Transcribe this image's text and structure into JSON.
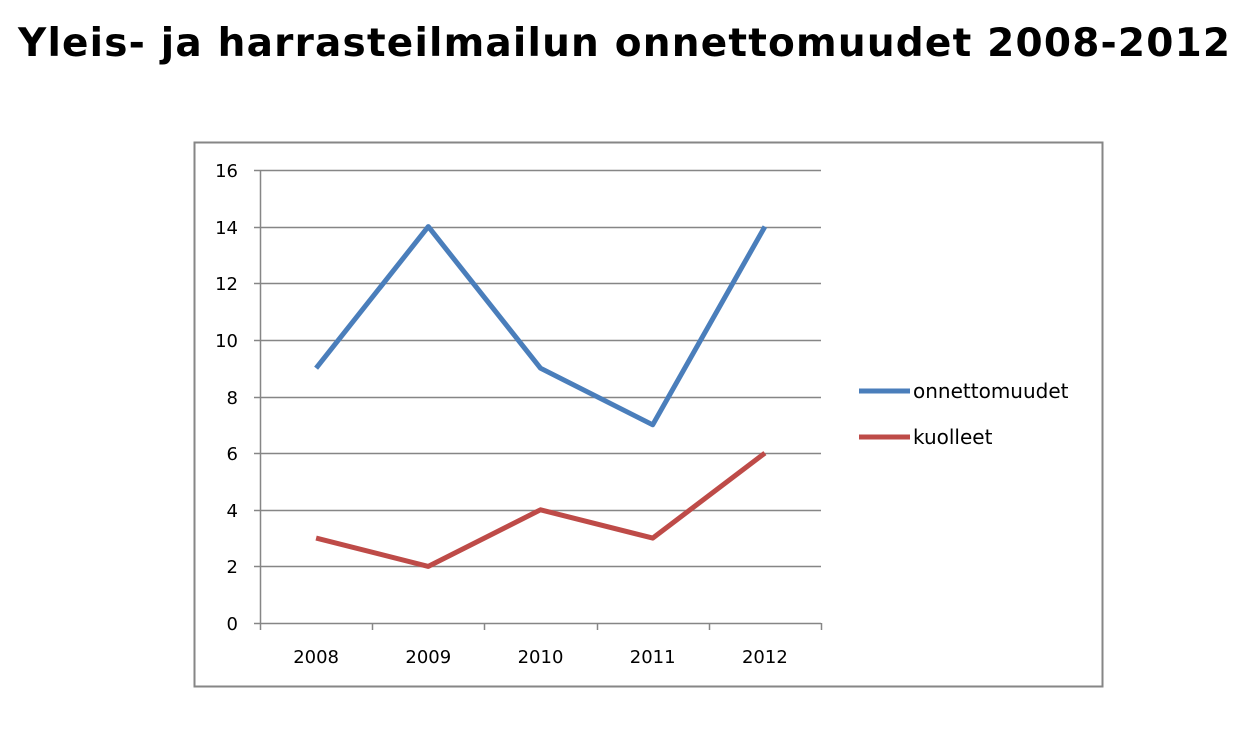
{
  "page": {
    "title": "Yleis- ja harrasteilmailun onnettomuudet 2008-2012"
  },
  "chart_data": {
    "type": "line",
    "title": "Yleis- ja harrasteilmailun onnettomuudet 2008-2012",
    "xlabel": "",
    "ylabel": "",
    "categories": [
      "2008",
      "2009",
      "2010",
      "2011",
      "2012"
    ],
    "ylim": [
      0,
      16
    ],
    "yticks": [
      0,
      2,
      4,
      6,
      8,
      10,
      12,
      14,
      16
    ],
    "grid": true,
    "legend_position": "right",
    "series": [
      {
        "name": "onnettomuudet",
        "values": [
          9,
          14,
          9,
          7,
          14
        ],
        "color": "#4a7ebb"
      },
      {
        "name": "kuolleet",
        "values": [
          3,
          2,
          4,
          3,
          6
        ],
        "color": "#be4b48"
      }
    ]
  }
}
